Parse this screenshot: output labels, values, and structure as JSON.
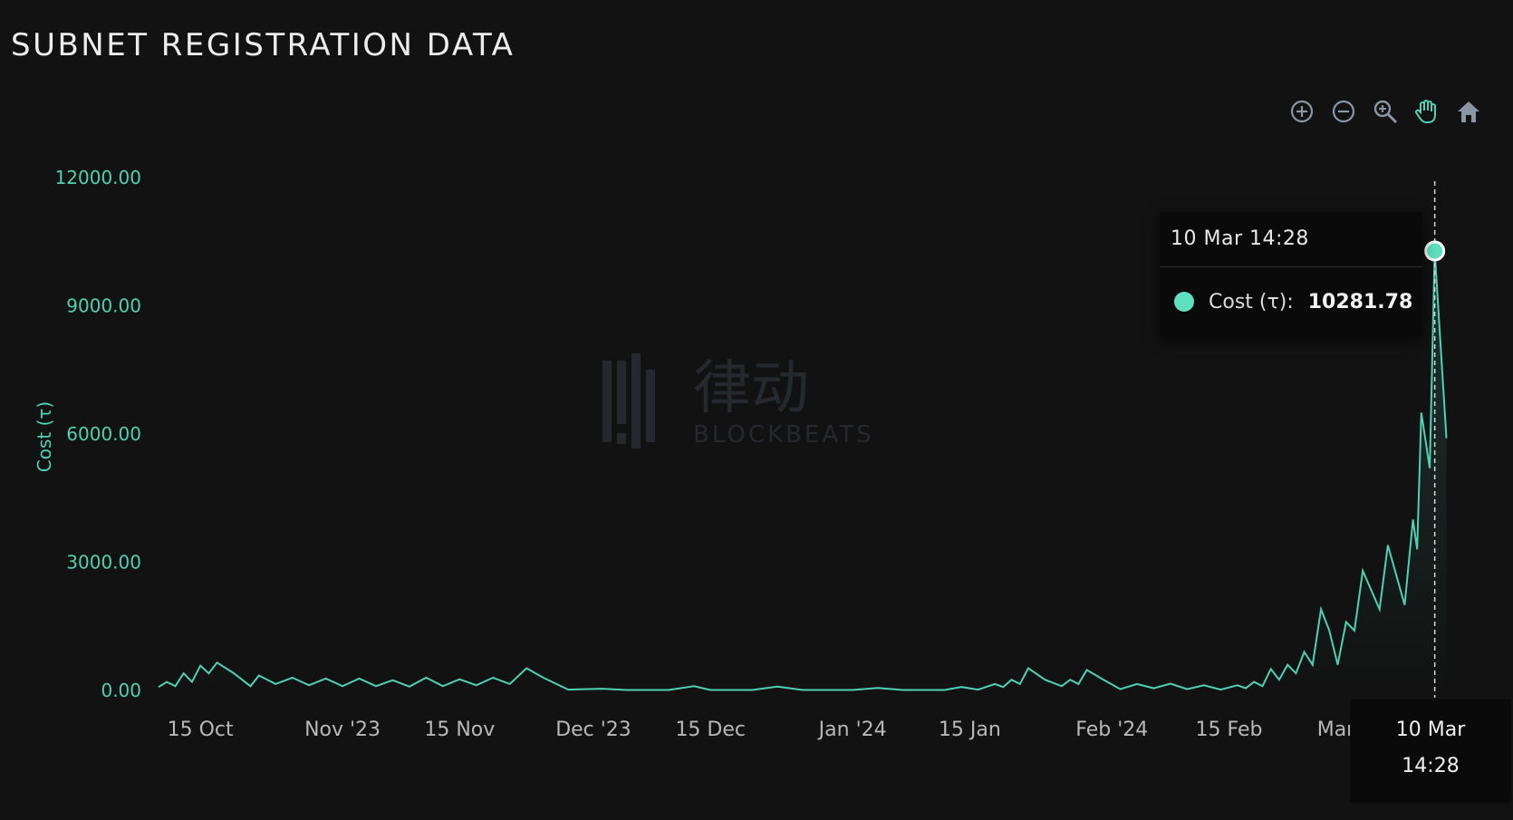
{
  "title": "SUBNET REGISTRATION DATA",
  "toolbar": {
    "icons": [
      "zoom-in-icon",
      "zoom-out-icon",
      "magnify-icon",
      "pan-hand-icon",
      "home-icon"
    ],
    "accent": "#4fd1b3",
    "icon_color": "#8a96a3"
  },
  "tooltip": {
    "header": "10 Mar 14:28",
    "series_label": "Cost (τ):",
    "value": "10281.78"
  },
  "crosshair_label": {
    "line1": "10 Mar",
    "line2": "14:28"
  },
  "watermark": {
    "brand_cn": "律动",
    "brand_en": "BLOCKBEATS"
  },
  "chart_data": {
    "type": "area",
    "title": "SUBNET REGISTRATION DATA",
    "ylabel": "Cost (τ)",
    "xlabel": "",
    "ylim": [
      0,
      12000
    ],
    "y_ticks": [
      "0.00",
      "3000.00",
      "6000.00",
      "9000.00",
      "12000.00"
    ],
    "y_tick_values": [
      0,
      3000,
      6000,
      9000,
      12000
    ],
    "x_ticks": [
      {
        "label": "15 Oct",
        "date": "2023-10-15"
      },
      {
        "label": "Nov '23",
        "date": "2023-11-01"
      },
      {
        "label": "15 Nov",
        "date": "2023-11-15"
      },
      {
        "label": "Dec '23",
        "date": "2023-12-01"
      },
      {
        "label": "15 Dec",
        "date": "2023-12-15"
      },
      {
        "label": "Jan '24",
        "date": "2024-01-01"
      },
      {
        "label": "15 Jan",
        "date": "2024-01-15"
      },
      {
        "label": "Feb '24",
        "date": "2024-02-01"
      },
      {
        "label": "15 Feb",
        "date": "2024-02-15"
      },
      {
        "label": "Mar '24",
        "date": "2024-03-01"
      }
    ],
    "xlim": [
      "2023-10-10",
      "2024-03-14"
    ],
    "grid": false,
    "line_color": "#4fd1b3",
    "series": [
      {
        "name": "Cost (τ)",
        "points": [
          [
            "2023-10-10",
            80
          ],
          [
            "2023-10-11",
            200
          ],
          [
            "2023-10-12",
            100
          ],
          [
            "2023-10-13",
            400
          ],
          [
            "2023-10-14",
            200
          ],
          [
            "2023-10-15",
            580
          ],
          [
            "2023-10-16",
            400
          ],
          [
            "2023-10-17",
            650
          ],
          [
            "2023-10-19",
            400
          ],
          [
            "2023-10-21",
            100
          ],
          [
            "2023-10-22",
            350
          ],
          [
            "2023-10-24",
            150
          ],
          [
            "2023-10-26",
            300
          ],
          [
            "2023-10-28",
            120
          ],
          [
            "2023-10-30",
            280
          ],
          [
            "2023-11-01",
            100
          ],
          [
            "2023-11-03",
            280
          ],
          [
            "2023-11-05",
            100
          ],
          [
            "2023-11-07",
            240
          ],
          [
            "2023-11-09",
            90
          ],
          [
            "2023-11-11",
            300
          ],
          [
            "2023-11-13",
            100
          ],
          [
            "2023-11-15",
            260
          ],
          [
            "2023-11-17",
            120
          ],
          [
            "2023-11-19",
            300
          ],
          [
            "2023-11-21",
            150
          ],
          [
            "2023-11-23",
            520
          ],
          [
            "2023-11-25",
            300
          ],
          [
            "2023-11-28",
            20
          ],
          [
            "2023-12-02",
            40
          ],
          [
            "2023-12-05",
            10
          ],
          [
            "2023-12-10",
            10
          ],
          [
            "2023-12-13",
            100
          ],
          [
            "2023-12-15",
            10
          ],
          [
            "2023-12-20",
            10
          ],
          [
            "2023-12-23",
            90
          ],
          [
            "2023-12-26",
            10
          ],
          [
            "2024-01-01",
            10
          ],
          [
            "2024-01-04",
            60
          ],
          [
            "2024-01-07",
            10
          ],
          [
            "2024-01-12",
            10
          ],
          [
            "2024-01-14",
            80
          ],
          [
            "2024-01-16",
            20
          ],
          [
            "2024-01-18",
            150
          ],
          [
            "2024-01-19",
            80
          ],
          [
            "2024-01-20",
            250
          ],
          [
            "2024-01-21",
            150
          ],
          [
            "2024-01-22",
            520
          ],
          [
            "2024-01-24",
            250
          ],
          [
            "2024-01-26",
            100
          ],
          [
            "2024-01-27",
            250
          ],
          [
            "2024-01-28",
            150
          ],
          [
            "2024-01-29",
            480
          ],
          [
            "2024-01-31",
            250
          ],
          [
            "2024-02-02",
            30
          ],
          [
            "2024-02-04",
            150
          ],
          [
            "2024-02-06",
            50
          ],
          [
            "2024-02-08",
            160
          ],
          [
            "2024-02-10",
            30
          ],
          [
            "2024-02-12",
            120
          ],
          [
            "2024-02-14",
            20
          ],
          [
            "2024-02-16",
            120
          ],
          [
            "2024-02-17",
            50
          ],
          [
            "2024-02-18",
            200
          ],
          [
            "2024-02-19",
            100
          ],
          [
            "2024-02-20",
            500
          ],
          [
            "2024-02-21",
            250
          ],
          [
            "2024-02-22",
            600
          ],
          [
            "2024-02-23",
            400
          ],
          [
            "2024-02-24",
            900
          ],
          [
            "2024-02-25",
            600
          ],
          [
            "2024-02-26",
            1900
          ],
          [
            "2024-02-27",
            1400
          ],
          [
            "2024-02-28",
            600
          ],
          [
            "2024-02-29",
            1600
          ],
          [
            "2024-03-01",
            1400
          ],
          [
            "2024-03-02",
            2800
          ],
          [
            "2024-03-04",
            1900
          ],
          [
            "2024-03-05",
            3400
          ],
          [
            "2024-03-07",
            2000
          ],
          [
            "2024-03-08",
            4000
          ],
          [
            "2024-03-08T12:00",
            3300
          ],
          [
            "2024-03-09",
            6500
          ],
          [
            "2024-03-10",
            5200
          ],
          [
            "2024-03-10T14:28",
            10281.78
          ],
          [
            "2024-03-12",
            5900
          ]
        ]
      }
    ],
    "highlight": {
      "x": "2024-03-10T14:28",
      "y": 10281.78
    }
  }
}
